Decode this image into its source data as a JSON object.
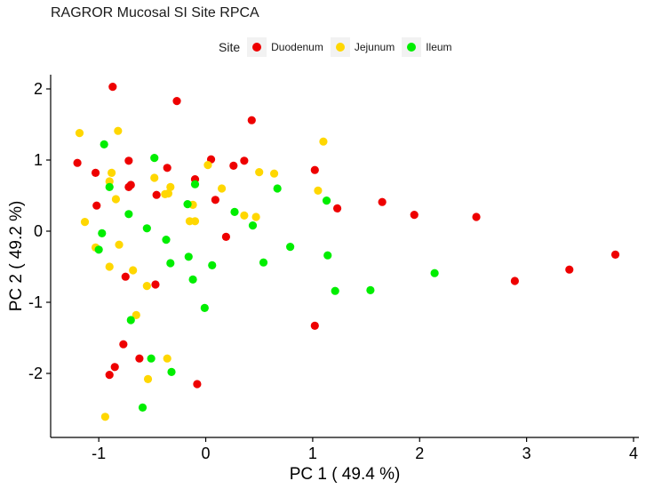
{
  "chart_data": {
    "type": "scatter",
    "title": "RAGROR Mucosal SI Site RPCA",
    "xlabel": "PC 1 ( 49.4 %)",
    "ylabel": "PC 2 ( 49.2 %)",
    "xlim": [
      -1.45,
      4.05
    ],
    "ylim": [
      -2.9,
      2.2
    ],
    "xticks": [
      -1,
      0,
      1,
      2,
      3,
      4
    ],
    "xtick_labels": [
      "-1",
      "0",
      "1",
      "2",
      "3",
      "4"
    ],
    "yticks": [
      -2,
      -1,
      0,
      1,
      2
    ],
    "ytick_labels": [
      "-2",
      "-1",
      "0",
      "1",
      "2"
    ],
    "grid": false,
    "legend": {
      "title": "Site",
      "position": "top"
    },
    "series": [
      {
        "name": "Duodenum",
        "color": "#ee0000",
        "points": [
          [
            -0.87,
            2.03
          ],
          [
            -0.27,
            1.83
          ],
          [
            0.43,
            1.56
          ],
          [
            -1.2,
            0.96
          ],
          [
            -0.72,
            0.99
          ],
          [
            -0.36,
            0.89
          ],
          [
            0.05,
            1.01
          ],
          [
            0.36,
            0.99
          ],
          [
            0.26,
            0.92
          ],
          [
            1.02,
            0.86
          ],
          [
            -1.03,
            0.82
          ],
          [
            -0.1,
            0.73
          ],
          [
            -0.72,
            0.62
          ],
          [
            -0.7,
            0.65
          ],
          [
            -0.46,
            0.51
          ],
          [
            0.09,
            0.44
          ],
          [
            -1.02,
            0.36
          ],
          [
            1.65,
            0.41
          ],
          [
            1.23,
            0.32
          ],
          [
            1.95,
            0.23
          ],
          [
            2.53,
            0.2
          ],
          [
            0.19,
            -0.08
          ],
          [
            3.83,
            -0.33
          ],
          [
            3.4,
            -0.54
          ],
          [
            2.89,
            -0.7
          ],
          [
            -0.75,
            -0.64
          ],
          [
            -0.47,
            -0.75
          ],
          [
            1.02,
            -1.33
          ],
          [
            -0.77,
            -1.59
          ],
          [
            -0.62,
            -1.79
          ],
          [
            -0.85,
            -1.91
          ],
          [
            -0.9,
            -2.02
          ],
          [
            -0.08,
            -2.15
          ]
        ]
      },
      {
        "name": "Jejunum",
        "color": "#ffd700",
        "points": [
          [
            -1.18,
            1.38
          ],
          [
            -0.82,
            1.41
          ],
          [
            1.1,
            1.26
          ],
          [
            -0.48,
            0.75
          ],
          [
            0.02,
            0.93
          ],
          [
            -0.88,
            0.82
          ],
          [
            0.5,
            0.83
          ],
          [
            0.64,
            0.81
          ],
          [
            -0.9,
            0.7
          ],
          [
            -0.33,
            0.62
          ],
          [
            0.15,
            0.6
          ],
          [
            1.05,
            0.57
          ],
          [
            -0.38,
            0.52
          ],
          [
            -0.35,
            0.53
          ],
          [
            -0.84,
            0.45
          ],
          [
            -0.12,
            0.37
          ],
          [
            0.36,
            0.22
          ],
          [
            0.47,
            0.2
          ],
          [
            -1.13,
            0.13
          ],
          [
            -0.15,
            0.14
          ],
          [
            -0.1,
            0.14
          ],
          [
            -1.03,
            -0.23
          ],
          [
            -0.81,
            -0.19
          ],
          [
            -0.9,
            -0.5
          ],
          [
            -0.68,
            -0.55
          ],
          [
            -0.55,
            -0.77
          ],
          [
            -0.65,
            -1.18
          ],
          [
            -0.36,
            -1.79
          ],
          [
            -0.54,
            -2.08
          ],
          [
            -0.94,
            -2.61
          ]
        ]
      },
      {
        "name": "Ileum",
        "color": "#00ee00",
        "points": [
          [
            -0.95,
            1.22
          ],
          [
            -0.48,
            1.03
          ],
          [
            -0.9,
            0.62
          ],
          [
            -0.1,
            0.66
          ],
          [
            0.67,
            0.6
          ],
          [
            1.13,
            0.43
          ],
          [
            -0.17,
            0.38
          ],
          [
            0.27,
            0.27
          ],
          [
            -0.72,
            0.24
          ],
          [
            0.44,
            0.08
          ],
          [
            -0.55,
            0.04
          ],
          [
            -0.97,
            -0.03
          ],
          [
            -0.37,
            -0.12
          ],
          [
            0.79,
            -0.22
          ],
          [
            1.14,
            -0.34
          ],
          [
            -0.16,
            -0.36
          ],
          [
            -0.33,
            -0.45
          ],
          [
            0.06,
            -0.48
          ],
          [
            0.54,
            -0.44
          ],
          [
            -1.0,
            -0.26
          ],
          [
            2.14,
            -0.59
          ],
          [
            -0.12,
            -0.68
          ],
          [
            1.21,
            -0.84
          ],
          [
            1.54,
            -0.83
          ],
          [
            -0.01,
            -1.08
          ],
          [
            -0.7,
            -1.25
          ],
          [
            -0.51,
            -1.79
          ],
          [
            -0.32,
            -1.98
          ],
          [
            -0.59,
            -2.48
          ]
        ]
      }
    ]
  }
}
